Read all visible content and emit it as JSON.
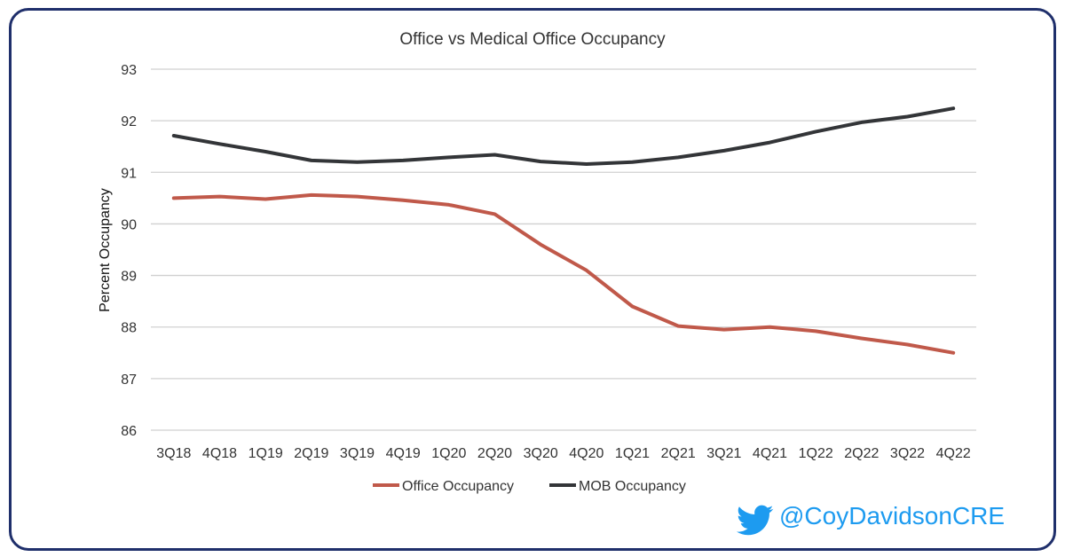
{
  "chart_data": {
    "type": "line",
    "title": "Office vs Medical Office Occupancy",
    "ylabel": "Percent Occupancy",
    "xlabel": "",
    "ylim": [
      86,
      93
    ],
    "yticks": [
      86,
      87,
      88,
      89,
      90,
      91,
      92,
      93
    ],
    "grid": true,
    "legend_position": "bottom",
    "categories": [
      "3Q18",
      "4Q18",
      "1Q19",
      "2Q19",
      "3Q19",
      "4Q19",
      "1Q20",
      "2Q20",
      "3Q20",
      "4Q20",
      "1Q21",
      "2Q21",
      "3Q21",
      "4Q21",
      "1Q22",
      "2Q22",
      "3Q22",
      "4Q22"
    ],
    "series": [
      {
        "name": "Office Occupancy",
        "color": "#c0594a",
        "values": [
          90.5,
          90.53,
          90.48,
          90.56,
          90.53,
          90.46,
          90.37,
          90.19,
          89.6,
          89.1,
          88.4,
          88.02,
          87.95,
          88.0,
          87.92,
          87.78,
          87.66,
          87.5
        ]
      },
      {
        "name": "MOB Occupancy",
        "color": "#333538",
        "values": [
          91.71,
          91.55,
          91.4,
          91.23,
          91.2,
          91.23,
          91.29,
          91.34,
          91.21,
          91.16,
          91.2,
          91.29,
          91.42,
          91.58,
          91.79,
          91.97,
          92.08,
          92.24
        ]
      }
    ]
  },
  "watermark": {
    "icon": "twitter-bird-icon",
    "handle": "@CoyDavidsonCRE",
    "color": "#1d9bf0"
  },
  "frame": {
    "border_color": "#1f2f6b"
  }
}
